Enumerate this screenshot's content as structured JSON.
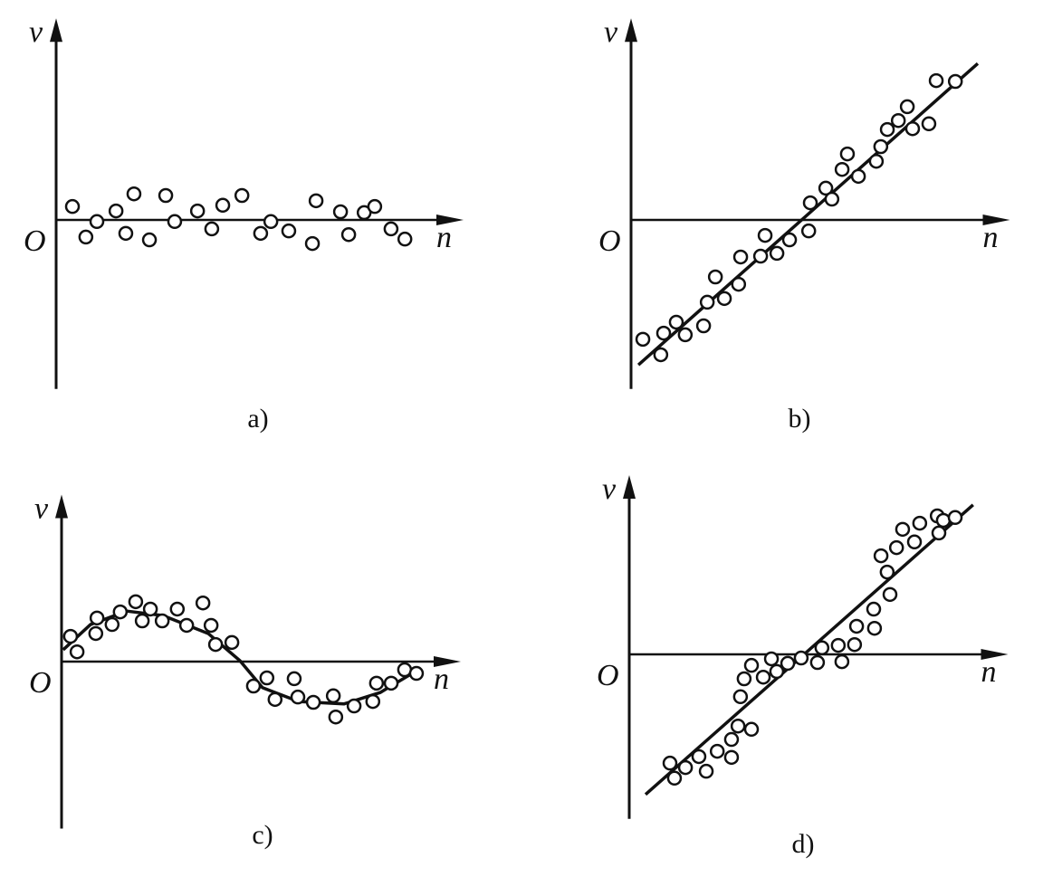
{
  "chart_data": [
    {
      "type": "scatter",
      "title": "a)",
      "x_label": "n",
      "y_label": "v",
      "origin_label": "O",
      "xlim": [
        0,
        100
      ],
      "ylim": [
        -41.5,
        49.5
      ],
      "x": [
        4,
        7.3,
        10,
        14.7,
        17.1,
        19.1,
        22.9,
        26.9,
        29.1,
        34.7,
        38.2,
        40.9,
        45.6,
        50.2,
        52.7,
        57.1,
        62.9,
        63.8,
        69.8,
        71.8,
        75.6,
        78.2,
        82.2,
        85.6
      ],
      "y": [
        3.3,
        -4.2,
        -0.4,
        2.2,
        -3.3,
        6.4,
        -4.9,
        6,
        -0.4,
        2.2,
        -2.2,
        3.6,
        6,
        -3.3,
        -0.4,
        -2.7,
        -5.8,
        4.7,
        2,
        -3.6,
        1.8,
        3.3,
        -2.2,
        -4.7
      ]
    },
    {
      "type": "scatter",
      "title": "b)",
      "x_label": "n",
      "y_label": "v",
      "origin_label": "O",
      "xlim": [
        0,
        93
      ],
      "ylim": [
        -41.5,
        49.5
      ],
      "x": [
        2.9,
        7.3,
        8,
        11.1,
        13.3,
        17.8,
        18.7,
        20.7,
        22.9,
        26.4,
        26.9,
        31.8,
        32.9,
        35.8,
        38.9,
        43.6,
        44,
        47.8,
        49.3,
        51.8,
        53.1,
        55.8,
        60.2,
        61.3,
        62.9,
        65.6,
        67.8,
        69.1,
        73.1,
        74.9,
        79.6
      ],
      "y": [
        -29.3,
        -33.1,
        -27.8,
        -25.1,
        -28.2,
        -26,
        -20.2,
        -14,
        -19.3,
        -15.8,
        -9.1,
        -8.9,
        -3.8,
        -8.2,
        -4.9,
        -2.7,
        4.2,
        7.8,
        5.1,
        12.4,
        16.2,
        10.7,
        14.4,
        18,
        22.2,
        24.4,
        27.8,
        22.4,
        23.6,
        34.2,
        34
      ],
      "fit": {
        "x": [
          1.8,
          85.1
        ],
        "y": [
          -35.6,
          38.4
        ]
      }
    },
    {
      "type": "scatter",
      "title": "c)",
      "x_label": "n",
      "y_label": "v",
      "origin_label": "O",
      "xlim": [
        0,
        98
      ],
      "ylim": [
        -41,
        41
      ],
      "x": [
        2.2,
        3.8,
        8.7,
        8.4,
        12.4,
        14.4,
        18.2,
        19.8,
        21.8,
        24.7,
        28.4,
        30.7,
        34.7,
        36.7,
        37.8,
        41.8,
        47.1,
        50.4,
        52.4,
        57.1,
        58,
        61.8,
        66.7,
        67.3,
        71.8,
        76.4,
        77.3,
        80.9,
        84.2,
        87.1
      ],
      "y": [
        6.2,
        2.4,
        10.7,
        6.9,
        9.1,
        12.2,
        14.7,
        10,
        12.9,
        10,
        12.9,
        8.9,
        14.4,
        8.9,
        4.2,
        4.7,
        -6,
        -4,
        -9.3,
        -4.2,
        -8.7,
        -10,
        -8.4,
        -13.6,
        -10.9,
        -9.8,
        -5.3,
        -5.3,
        -2,
        -2.9
      ],
      "fit": {
        "x": [
          0.4,
          7.1,
          16,
          24.9,
          36,
          43.8,
          49.3,
          58.2,
          69.3,
          78.2,
          88.2
        ],
        "y": [
          2.9,
          9.1,
          12.4,
          11.3,
          6.9,
          0.2,
          -6.4,
          -9.8,
          -10.4,
          -7.6,
          -1.6
        ]
      }
    },
    {
      "type": "scatter",
      "title": "d)",
      "x_label": "n",
      "y_label": "v",
      "origin_label": "O",
      "xlim": [
        0,
        93
      ],
      "ylim": [
        -40.4,
        44
      ],
      "x": [
        10,
        11.1,
        13.8,
        17.1,
        18.9,
        21.6,
        25.1,
        25.1,
        26.7,
        30,
        27.3,
        28.2,
        30,
        32.9,
        34.9,
        36.2,
        38.9,
        42.2,
        46.2,
        47.3,
        51.3,
        52.2,
        55.3,
        55.8,
        60,
        60.2,
        61.8,
        63.3,
        64,
        65.6,
        67.1,
        70,
        71.3,
        75.6,
        76,
        77.1,
        80
      ],
      "y": [
        -26.7,
        -30.4,
        -27.8,
        -25.1,
        -28.7,
        -23.8,
        -25.3,
        -20.9,
        -17.6,
        -18.4,
        -10.4,
        -6,
        -2.7,
        -5.6,
        -1.1,
        -4.2,
        -2.2,
        -0.9,
        -2,
        1.6,
        2.2,
        -1.8,
        2.4,
        6.9,
        11.1,
        6.4,
        24.2,
        20.2,
        14.7,
        26.2,
        30.7,
        27.6,
        32.2,
        34,
        29.8,
        32.9,
        33.6
      ],
      "fit": {
        "x": [
          4,
          84.4
        ],
        "y": [
          -34.4,
          36.7
        ]
      }
    }
  ]
}
